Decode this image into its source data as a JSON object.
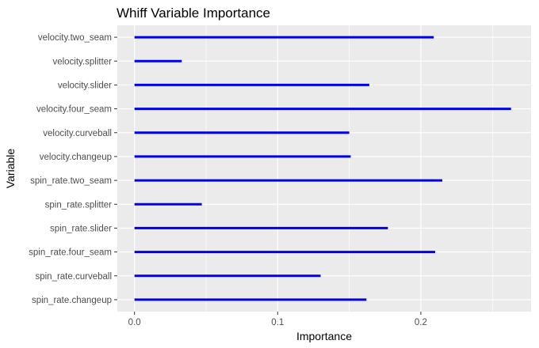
{
  "chart_data": {
    "type": "bar",
    "orientation": "horizontal",
    "title": "Whiff Variable Importance",
    "xlabel": "Importance",
    "ylabel": "Variable",
    "categories": [
      "velocity.two_seam",
      "velocity.splitter",
      "velocity.slider",
      "velocity.four_seam",
      "velocity.curveball",
      "velocity.changeup",
      "spin_rate.two_seam",
      "spin_rate.splitter",
      "spin_rate.slider",
      "spin_rate.four_seam",
      "spin_rate.curveball",
      "spin_rate.changeup"
    ],
    "values": [
      0.209,
      0.033,
      0.164,
      0.263,
      0.15,
      0.151,
      0.215,
      0.047,
      0.177,
      0.21,
      0.13,
      0.162
    ],
    "xlim": [
      -0.012,
      0.277
    ],
    "xticks": [
      0,
      0.1,
      0.2
    ],
    "xtick_labels": [
      "0.0",
      "0.1",
      "0.2"
    ],
    "grid": true,
    "bar_color": "#0000ee",
    "panel_color": "#ebebeb",
    "grid_color": "#ffffff"
  }
}
